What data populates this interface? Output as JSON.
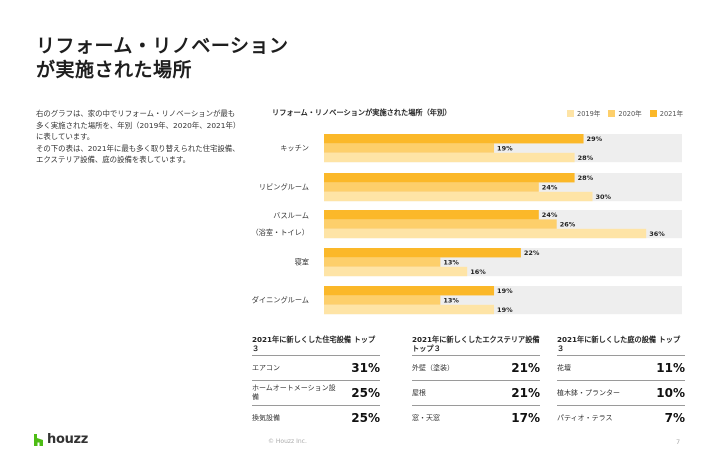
{
  "title": {
    "line1": "リフォーム・リノベーション",
    "line2": "が実施された場所"
  },
  "description": {
    "p1": "右のグラフは、家の中でリフォーム・リノベーションが最も多く実施された場所を、年別（2019年、2020年、2021年）に表しています。",
    "p2": "その下の表は、2021年に最も多く取り替えられた住宅設備、エクステリア設備、庭の設備を表しています。"
  },
  "colors": {
    "y2021": "#FBB829",
    "y2020": "#FDCF6B",
    "y2019": "#FEE4A6",
    "track": "#EEEEEE"
  },
  "chart_data": {
    "type": "bar",
    "orientation": "horizontal",
    "title": "リフォーム・リノベーションが実施された場所（年別）",
    "legend": [
      "2019年",
      "2020年",
      "2021年"
    ],
    "categories": [
      "キッチン",
      "リビングルーム",
      "バスルーム（浴室・トイレ）",
      "寝室",
      "ダイニングルーム"
    ],
    "category_labels": [
      [
        "キッチン"
      ],
      [
        "リビングルーム"
      ],
      [
        "バスルーム",
        "（浴室・トイレ）"
      ],
      [
        "寝室"
      ],
      [
        "ダイニングルーム"
      ]
    ],
    "series": [
      {
        "name": "2021年",
        "values": [
          29,
          28,
          24,
          22,
          19
        ]
      },
      {
        "name": "2020年",
        "values": [
          19,
          24,
          26,
          13,
          13
        ]
      },
      {
        "name": "2019年",
        "values": [
          28,
          30,
          36,
          16,
          19
        ]
      }
    ],
    "unit": "%",
    "xlim": [
      0,
      36
    ]
  },
  "tables": [
    {
      "title": "2021年に新しくした住宅設備 トップ３",
      "rows": [
        {
          "label": "エアコン",
          "value": "31%"
        },
        {
          "label": "ホームオートメーション設備",
          "value": "25%"
        },
        {
          "label": "換気設備",
          "value": "25%"
        }
      ]
    },
    {
      "title": "2021年に新しくしたエクステリア設備 トップ３",
      "rows": [
        {
          "label": "外壁（塗装）",
          "value": "21%"
        },
        {
          "label": "屋根",
          "value": "21%"
        },
        {
          "label": "窓・天窓",
          "value": "17%"
        }
      ]
    },
    {
      "title": "2021年に新しくした庭の設備 トップ３",
      "rows": [
        {
          "label": "花壇",
          "value": "11%"
        },
        {
          "label": "植木鉢・プランター",
          "value": "10%"
        },
        {
          "label": "パティオ・テラス",
          "value": "7%"
        }
      ]
    }
  ],
  "footer": {
    "logo": "houzz",
    "copyright": "© Houzz Inc.",
    "page": "7"
  }
}
